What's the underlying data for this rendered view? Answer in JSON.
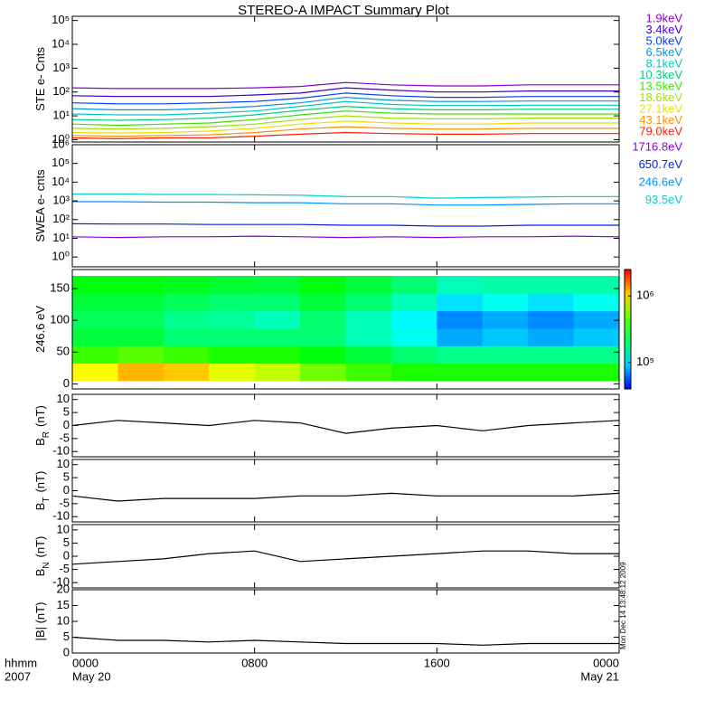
{
  "title": "STEREO-A IMPACT Summary Plot",
  "timestamp": "Mon Dec 14 13:48:12 2009",
  "x_axis": {
    "xlim": [
      0,
      24
    ],
    "xticks": [
      {
        "value": 0,
        "label": "0000"
      },
      {
        "value": 8,
        "label": "0800"
      },
      {
        "value": 16,
        "label": "1600"
      },
      {
        "value": 24,
        "label": "0000"
      }
    ],
    "dates": [
      "May 20",
      "May 21"
    ],
    "left_labels": [
      "hhmm",
      "2007"
    ]
  },
  "chart_data": [
    {
      "type": "line",
      "ylabel": "STE e- Cnts",
      "log_y": true,
      "ylim": [
        0.8,
        150000
      ],
      "yticks": [
        {
          "value": 1,
          "label": "10⁰"
        },
        {
          "value": 10,
          "label": "10¹"
        },
        {
          "value": 100,
          "label": "10²"
        },
        {
          "value": 1000,
          "label": "10³"
        },
        {
          "value": 10000,
          "label": "10⁴"
        },
        {
          "value": 100000,
          "label": "10⁵"
        }
      ],
      "x": [
        0,
        2,
        4,
        6,
        8,
        10,
        12,
        14,
        16,
        18,
        20,
        22,
        24
      ],
      "series": [
        {
          "name": "1.9keV",
          "color": "#8a00d4",
          "values": [
            150,
            140,
            140,
            140,
            150,
            170,
            250,
            200,
            180,
            180,
            200,
            200,
            200
          ]
        },
        {
          "name": "3.4keV",
          "color": "#3c00c8",
          "values": [
            70,
            65,
            65,
            65,
            75,
            90,
            150,
            120,
            100,
            100,
            110,
            110,
            110
          ]
        },
        {
          "name": "5.0keV",
          "color": "#0040ff",
          "values": [
            35,
            32,
            32,
            35,
            40,
            55,
            90,
            70,
            60,
            60,
            65,
            65,
            65
          ]
        },
        {
          "name": "6.5keV",
          "color": "#0098e0",
          "values": [
            20,
            18,
            18,
            20,
            25,
            35,
            60,
            45,
            40,
            40,
            42,
            42,
            42
          ]
        },
        {
          "name": "8.1keV",
          "color": "#00c8c8",
          "values": [
            12,
            11,
            11,
            13,
            16,
            25,
            40,
            30,
            27,
            27,
            28,
            28,
            28
          ]
        },
        {
          "name": "10.3keV",
          "color": "#00d080",
          "values": [
            7,
            6.5,
            7,
            8,
            11,
            17,
            25,
            20,
            18,
            18,
            19,
            19,
            19
          ]
        },
        {
          "name": "13.5keV",
          "color": "#40e000",
          "values": [
            4.5,
            4,
            4.5,
            5,
            7,
            11,
            16,
            13,
            12,
            12,
            12,
            12,
            12
          ]
        },
        {
          "name": "18.6keV",
          "color": "#a0e000",
          "values": [
            3,
            2.8,
            3,
            3.5,
            4.5,
            7,
            10,
            8,
            7.5,
            7.5,
            8,
            8,
            8
          ]
        },
        {
          "name": "27.1keV",
          "color": "#e8e000",
          "values": [
            2,
            1.9,
            2,
            2.3,
            3,
            4.5,
            6,
            5,
            4.5,
            4.5,
            5,
            5,
            5
          ]
        },
        {
          "name": "43.1keV",
          "color": "#ff9000",
          "values": [
            1.5,
            1.4,
            1.5,
            1.6,
            2,
            2.8,
            3.5,
            3,
            2.8,
            2.8,
            3,
            3,
            3
          ]
        },
        {
          "name": "79.0keV",
          "color": "#ff2000",
          "values": [
            1.2,
            1.1,
            1.2,
            1.2,
            1.4,
            1.7,
            2,
            1.8,
            1.7,
            1.7,
            1.8,
            1.8,
            1.8
          ]
        }
      ]
    },
    {
      "type": "line",
      "ylabel": "SWEA e- cnts",
      "log_y": true,
      "ylim": [
        0.3,
        1000000
      ],
      "yticks": [
        {
          "value": 1,
          "label": "10⁰"
        },
        {
          "value": 10,
          "label": "10¹"
        },
        {
          "value": 100,
          "label": "10²"
        },
        {
          "value": 1000,
          "label": "10³"
        },
        {
          "value": 10000,
          "label": "10⁴"
        },
        {
          "value": 100000,
          "label": "10⁵"
        },
        {
          "value": 1000000,
          "label": "10⁶"
        }
      ],
      "x": [
        0,
        2,
        4,
        6,
        8,
        10,
        12,
        14,
        16,
        18,
        20,
        22,
        24
      ],
      "series": [
        {
          "name": "1716.8eV",
          "color": "#8a00d4",
          "values": [
            12,
            11,
            12,
            12,
            13,
            12,
            11,
            12,
            11,
            12,
            12,
            13,
            12
          ]
        },
        {
          "name": "650.7eV",
          "color": "#0020e0",
          "values": [
            60,
            58,
            58,
            55,
            55,
            55,
            50,
            50,
            45,
            45,
            50,
            50,
            50
          ]
        },
        {
          "name": "246.6eV",
          "color": "#0090ff",
          "values": [
            900,
            900,
            850,
            850,
            800,
            800,
            700,
            700,
            600,
            600,
            650,
            700,
            700
          ]
        },
        {
          "name": "93.5eV",
          "color": "#00d0d0",
          "values": [
            2300,
            2300,
            2200,
            2200,
            2100,
            2000,
            1700,
            1700,
            1400,
            1500,
            1600,
            1700,
            1700
          ]
        }
      ]
    },
    {
      "type": "heatmap",
      "ylabel": "246.6 eV",
      "ylim": [
        -8,
        180
      ],
      "yticks": [
        0,
        50,
        100,
        150
      ],
      "x_bins": [
        0,
        2,
        4,
        6,
        8,
        10,
        12,
        14,
        16,
        18,
        20,
        22,
        24
      ],
      "y_bins": [
        5,
        32.5,
        60,
        87.5,
        115,
        142.5,
        170
      ],
      "zlim": [
        40000,
        2500000
      ],
      "zticks": [
        {
          "value": 100000,
          "label": "10⁵"
        },
        {
          "value": 1000000,
          "label": "10⁶"
        }
      ],
      "z": [
        [
          900000,
          400000,
          250000,
          220000,
          250000,
          300000
        ],
        [
          1200000,
          450000,
          250000,
          220000,
          250000,
          300000
        ],
        [
          1100000,
          400000,
          200000,
          180000,
          220000,
          280000
        ],
        [
          800000,
          350000,
          200000,
          170000,
          200000,
          260000
        ],
        [
          700000,
          350000,
          200000,
          150000,
          200000,
          250000
        ],
        [
          500000,
          300000,
          200000,
          200000,
          250000,
          300000
        ],
        [
          400000,
          250000,
          150000,
          150000,
          200000,
          250000
        ],
        [
          350000,
          200000,
          120000,
          110000,
          150000,
          200000
        ],
        [
          350000,
          180000,
          80000,
          70000,
          100000,
          150000
        ],
        [
          350000,
          180000,
          90000,
          80000,
          120000,
          160000
        ],
        [
          350000,
          180000,
          80000,
          70000,
          100000,
          160000
        ],
        [
          350000,
          180000,
          90000,
          80000,
          120000,
          160000
        ]
      ]
    },
    {
      "type": "line",
      "ylabel": "B",
      "ylabel_sub": "R",
      "ylabel_unit": "(nT)",
      "ylim": [
        -12,
        12
      ],
      "yticks": [
        -10,
        -5,
        0,
        5,
        10
      ],
      "x": [
        0,
        2,
        4,
        6,
        8,
        10,
        12,
        14,
        16,
        18,
        20,
        22,
        24
      ],
      "series": [
        {
          "color": "#000000",
          "values": [
            0,
            2,
            1,
            0,
            2,
            1,
            -3,
            -1,
            0,
            -2,
            0,
            1,
            2
          ]
        }
      ]
    },
    {
      "type": "line",
      "ylabel": "B",
      "ylabel_sub": "T",
      "ylabel_unit": "(nT)",
      "ylim": [
        -12,
        12
      ],
      "yticks": [
        -10,
        -5,
        0,
        5,
        10
      ],
      "x": [
        0,
        2,
        4,
        6,
        8,
        10,
        12,
        14,
        16,
        18,
        20,
        22,
        24
      ],
      "series": [
        {
          "color": "#000000",
          "values": [
            -2,
            -4,
            -3,
            -3,
            -3,
            -2,
            -2,
            -1,
            -2,
            -2,
            -2,
            -2,
            -1
          ]
        }
      ]
    },
    {
      "type": "line",
      "ylabel": "B",
      "ylabel_sub": "N",
      "ylabel_unit": "(nT)",
      "ylim": [
        -12,
        12
      ],
      "yticks": [
        -10,
        -5,
        0,
        5,
        10
      ],
      "x": [
        0,
        2,
        4,
        6,
        8,
        10,
        12,
        14,
        16,
        18,
        20,
        22,
        24
      ],
      "series": [
        {
          "color": "#000000",
          "values": [
            -3,
            -2,
            -1,
            1,
            2,
            -2,
            -1,
            0,
            1,
            2,
            2,
            1,
            1
          ]
        }
      ]
    },
    {
      "type": "line",
      "ylabel": "|B| (nT)",
      "ylim": [
        0,
        20
      ],
      "yticks": [
        0,
        5,
        10,
        15,
        20
      ],
      "x": [
        0,
        2,
        4,
        6,
        8,
        10,
        12,
        14,
        16,
        18,
        20,
        22,
        24
      ],
      "series": [
        {
          "color": "#000000",
          "values": [
            5,
            4,
            4,
            3.5,
            4,
            3.5,
            3,
            3,
            3,
            2.5,
            3,
            3,
            3
          ]
        }
      ]
    }
  ]
}
